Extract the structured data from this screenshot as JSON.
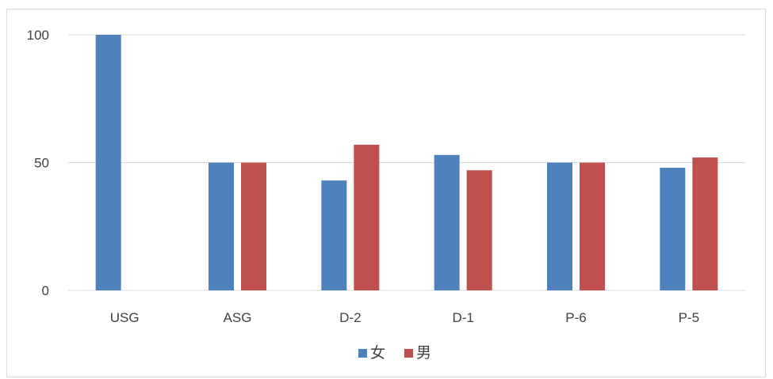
{
  "chart_data": {
    "type": "bar",
    "title": "",
    "xlabel": "",
    "ylabel": "",
    "categories": [
      "USG",
      "ASG",
      "D-2",
      "D-1",
      "P-6",
      "P-5"
    ],
    "series": [
      {
        "name": "女",
        "color": "#4f81bd",
        "values": [
          100,
          50,
          43,
          53,
          50,
          48
        ]
      },
      {
        "name": "男",
        "color": "#c0504d",
        "values": [
          null,
          50,
          57,
          47,
          50,
          52
        ]
      }
    ],
    "ylim": [
      0,
      100
    ],
    "yticks": [
      0,
      50,
      100
    ],
    "grid": true,
    "legend_position": "bottom",
    "gridline_color": "#d9d9d9"
  }
}
